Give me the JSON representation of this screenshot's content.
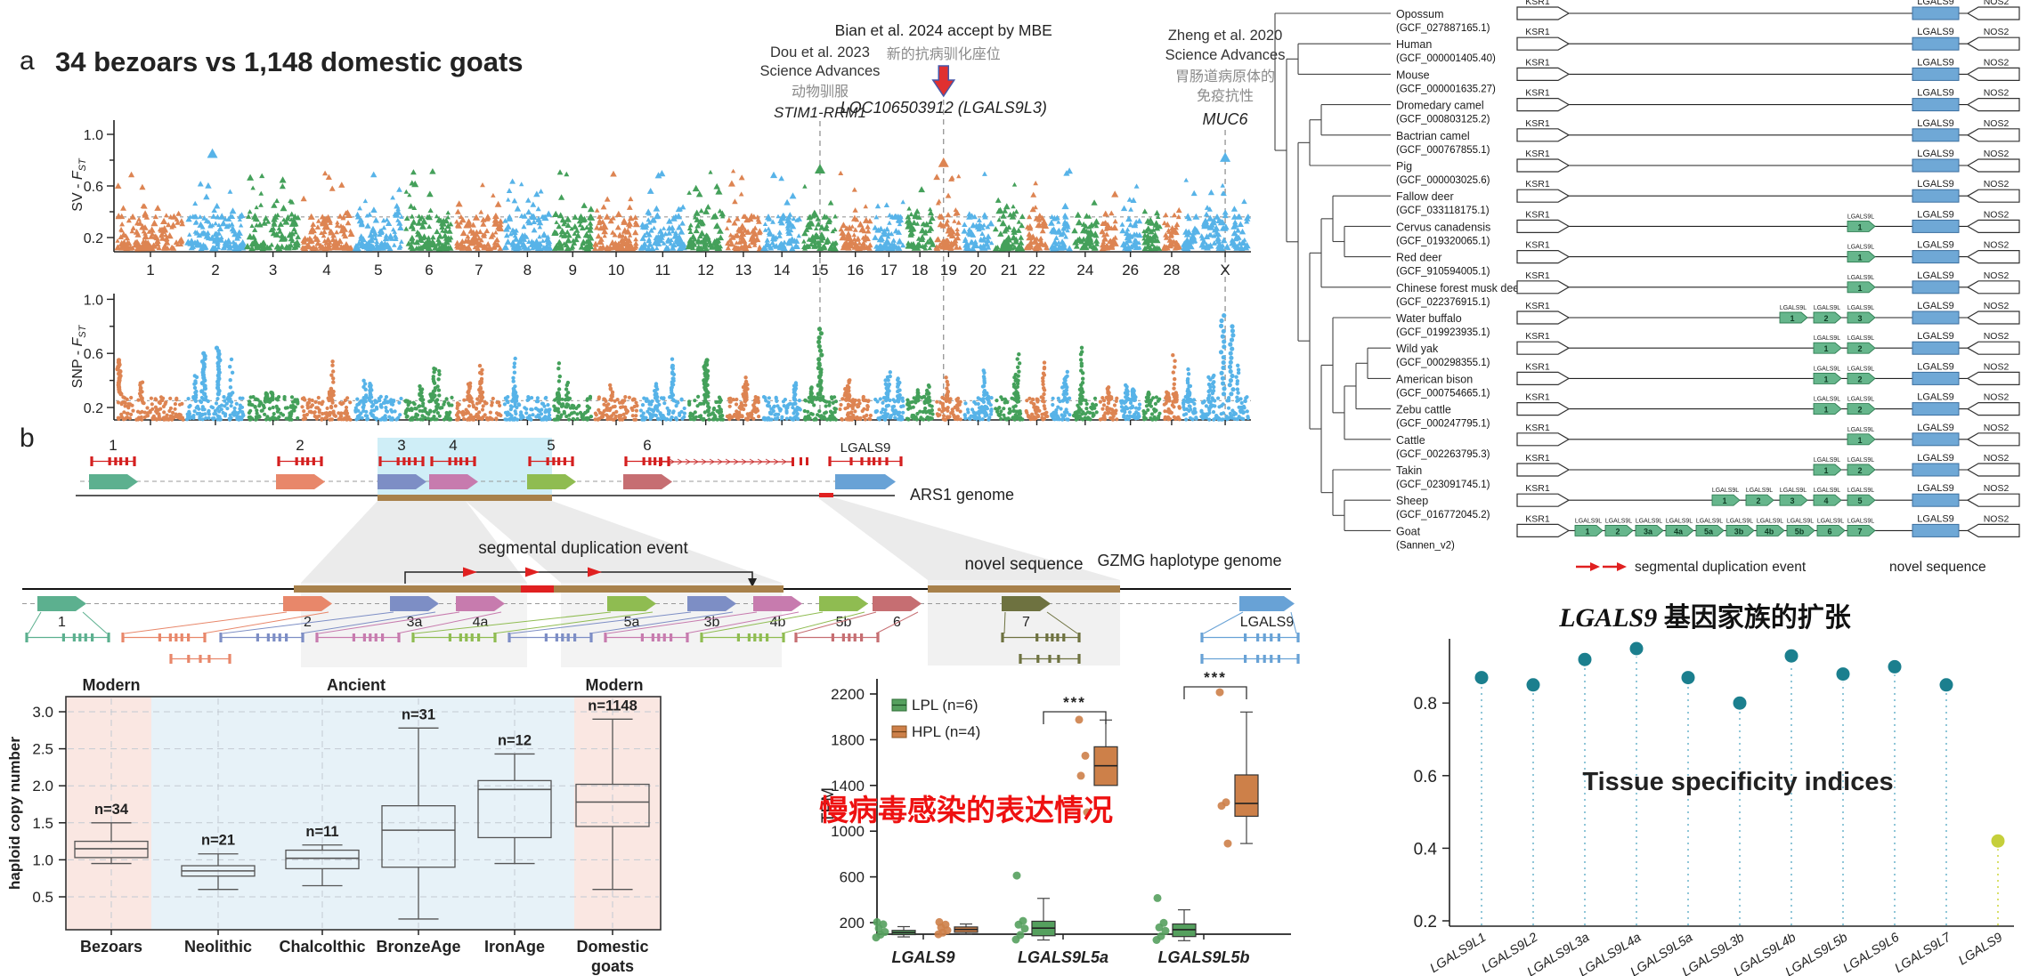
{
  "panel_a": {
    "label": "a",
    "title": "34 bezoars vs 1,148 domestic goats",
    "annotations": {
      "dou": {
        "ref": "Dou et al. 2023",
        "journal": "Science Advances",
        "note": "动物驯服",
        "genes": "STIM1-RRM1"
      },
      "bian": {
        "ref": "Bian et al. 2024 accept by MBE",
        "note": "新的抗病驯化座位",
        "genes": "LOC106503912  (LGALS9L3)"
      },
      "zheng": {
        "ref": "Zheng et al. 2020",
        "journal": "Science Advances",
        "note1": "胃肠道病原体的",
        "note2": "免疫抗性",
        "genes": "MUC6"
      }
    }
  },
  "chart_data": [
    {
      "id": "sv_fst",
      "type": "scatter",
      "ylabel_prefix": "SV - ",
      "ylabel_stat": "F",
      "ylabel_sub": "ST",
      "yticks": [
        "1.0",
        "0.6",
        "0.2"
      ],
      "ylim": [
        0.1,
        1.0
      ],
      "threshold": 0.36,
      "marker": "triangle",
      "chromosomes": [
        "1",
        "2",
        "3",
        "4",
        "5",
        "6",
        "7",
        "8",
        "9",
        "10",
        "11",
        "12",
        "13",
        "14",
        "15",
        "16",
        "17",
        "18",
        "19",
        "20",
        "21",
        "22",
        "",
        "24",
        "",
        "26",
        "",
        "28",
        "",
        "X"
      ],
      "point_colors": [
        "#dd8452",
        "#57b3e8",
        "#44a05a"
      ],
      "peaks": [
        {
          "chrom": "2",
          "frac": 0.45,
          "fst": 0.85
        },
        {
          "chrom": "15",
          "frac": 0.5,
          "fst": 0.73,
          "gene": "STIM1-RRM1"
        },
        {
          "chrom": "19",
          "frac": 0.32,
          "fst": 0.78,
          "gene": "LOC106503912 (LGALS9L3)"
        },
        {
          "chrom": "X",
          "frac": 0.5,
          "fst": 0.82,
          "gene": "MUC6"
        }
      ]
    },
    {
      "id": "snp_fst",
      "type": "scatter",
      "ylabel_prefix": "SNP - ",
      "ylabel_stat": "F",
      "ylabel_sub": "ST",
      "yticks": [
        "1.0",
        "0.6",
        "0.2"
      ],
      "ylim": [
        0.1,
        1.0
      ],
      "threshold": 0.25,
      "marker": "circle",
      "peaks": [
        {
          "chrom": "1",
          "frac": 0.05,
          "fst": 0.55
        },
        {
          "chrom": "2",
          "frac": 0.3,
          "fst": 0.6
        },
        {
          "chrom": "2",
          "frac": 0.55,
          "fst": 0.64
        },
        {
          "chrom": "12",
          "frac": 0.5,
          "fst": 0.55
        },
        {
          "chrom": "15",
          "frac": 0.5,
          "fst": 0.78,
          "gene": "STIM1-RRM1"
        },
        {
          "chrom": "X",
          "frac": 0.45,
          "fst": 0.88,
          "gene": "MUC6"
        },
        {
          "chrom": "X",
          "frac": 0.62,
          "fst": 0.8
        }
      ]
    },
    {
      "id": "haploid_copy_number",
      "type": "box",
      "ylabel": "haploid copy number",
      "yticks": [
        "0.5",
        "1.0",
        "1.5",
        "2.0",
        "2.5",
        "3.0"
      ],
      "ylim": [
        0.1,
        3.2
      ],
      "era_bands": [
        {
          "label": "Modern",
          "color": "#fae7e2"
        },
        {
          "label": "Ancient",
          "color": "#e7f2f8"
        },
        {
          "label": "Modern",
          "color": "#fae7e2"
        }
      ],
      "boxes": [
        {
          "label": "Bezoars",
          "label2": [
            "Bezoars"
          ],
          "n": "n=34",
          "lo": 0.95,
          "q1": 1.03,
          "med": 1.15,
          "q3": 1.25,
          "hi": 1.5
        },
        {
          "label": "Neolithic",
          "label2": [
            "Neolithic"
          ],
          "n": "n=21",
          "lo": 0.6,
          "q1": 0.78,
          "med": 0.85,
          "q3": 0.92,
          "hi": 1.08
        },
        {
          "label": "Chalcolthic",
          "label2": [
            "Chalcolthic"
          ],
          "n": "n=11",
          "lo": 0.65,
          "q1": 0.88,
          "med": 1.02,
          "q3": 1.13,
          "hi": 1.2
        },
        {
          "label": "BronzeAge",
          "label2": [
            "BronzeAge"
          ],
          "n": "n=31",
          "lo": 0.2,
          "q1": 0.9,
          "med": 1.4,
          "q3": 1.73,
          "hi": 2.78
        },
        {
          "label": "IronAge",
          "label2": [
            "IronAge"
          ],
          "n": "n=12",
          "lo": 0.95,
          "q1": 1.3,
          "med": 1.95,
          "q3": 2.07,
          "hi": 2.43
        },
        {
          "label": "Domestic goats",
          "label2": [
            "Domestic",
            "goats"
          ],
          "n": "n=1148",
          "lo": 0.6,
          "q1": 1.45,
          "med": 1.78,
          "q3": 2.02,
          "hi": 2.9
        }
      ]
    },
    {
      "id": "tpm_expression",
      "type": "box",
      "ylabel": "TPM",
      "yticks": [
        "200",
        "600",
        "1000",
        "1400",
        "1800",
        "2200"
      ],
      "ylim": [
        0,
        2350
      ],
      "legend": [
        {
          "label": "LPL (n=6)",
          "color": "#55a05e"
        },
        {
          "label": "HPL (n=4)",
          "color": "#cd8049"
        }
      ],
      "note": "慢病毒感染的表达情况",
      "note_color": "#ee1111",
      "groups": [
        {
          "gene": "LGALS9",
          "sig": null,
          "lpl": {
            "lo": 75,
            "q1": 95,
            "med": 112,
            "q3": 132,
            "hi": 165,
            "dots": [
              205,
              185,
              150,
              118,
              95,
              70
            ]
          },
          "hpl": {
            "lo": 98,
            "q1": 115,
            "med": 140,
            "q3": 162,
            "hi": 188,
            "dots": [
              205,
              182,
              158,
              132,
              112,
              98
            ]
          }
        },
        {
          "gene": "LGALS9L5a",
          "sig": "***",
          "lpl": {
            "lo": 48,
            "q1": 85,
            "med": 152,
            "q3": 212,
            "hi": 412,
            "dots": [
              612,
              215,
              182,
              148,
              92,
              52
            ]
          },
          "hpl": {
            "lo": 1400,
            "q1": 1400,
            "med": 1572,
            "q3": 1738,
            "hi": 1972,
            "dots": [
              1975,
              1660,
              1485,
              1165
            ]
          }
        },
        {
          "gene": "LGALS9L5b",
          "sig": "***",
          "lpl": {
            "lo": 42,
            "q1": 78,
            "med": 138,
            "q3": 188,
            "hi": 312,
            "dots": [
              415,
              198,
              158,
              128,
              82,
              48
            ]
          },
          "hpl": {
            "lo": 892,
            "q1": 1130,
            "med": 1242,
            "q3": 1492,
            "hi": 2042,
            "dots": [
              2215,
              1252,
              1222,
              892
            ]
          }
        }
      ]
    },
    {
      "id": "tissue_specificity",
      "type": "lollipop",
      "title": "Tissue specificity indices",
      "yticks": [
        "0.2",
        "0.4",
        "0.6",
        "0.8"
      ],
      "ylim": [
        0.2,
        1.0
      ],
      "categories": [
        "LGALS9L1",
        "LGALS9L2",
        "LGALS9L3a",
        "LGALS9L4a",
        "LGALS9L5a",
        "LGALS9L3b",
        "LGALS9L4b",
        "LGALS9L5b",
        "LGALS9L6",
        "LGALS9L7",
        "LGALS9"
      ],
      "values": [
        0.87,
        0.85,
        0.92,
        0.95,
        0.87,
        0.8,
        0.93,
        0.88,
        0.9,
        0.85,
        0.42
      ],
      "dot_color": "#1b7f8e",
      "last_dot_color": "#c5cf3a",
      "stem_color": "#8fc6d8",
      "last_stem_color": "#d9e06a"
    }
  ],
  "panel_b": {
    "label": "b",
    "ars1_label": "ARS1 genome",
    "gzmg_label": "GZMG haplotype genome",
    "dup_label": "segmental duplication event",
    "novel_label": "novel sequence",
    "ars1_genes": [
      {
        "id": "1",
        "color": "#5cb08f"
      },
      {
        "id": "2",
        "color": "#e8876a"
      },
      {
        "id": "3",
        "color": "#7d8ec5"
      },
      {
        "id": "4",
        "color": "#c77bae"
      },
      {
        "id": "5",
        "color": "#8fbc51"
      },
      {
        "id": "6",
        "color": "#c66e72"
      },
      {
        "id": "LGALS9",
        "color": "#68a2d6"
      }
    ],
    "gzmg_genes": [
      {
        "id": "1",
        "color": "#5cb08f"
      },
      {
        "id": "2",
        "color": "#e8876a"
      },
      {
        "id": "3a",
        "color": "#7d8ec5"
      },
      {
        "id": "4a",
        "color": "#c77bae"
      },
      {
        "id": "5a",
        "color": "#8fbc51"
      },
      {
        "id": "3b",
        "color": "#7d8ec5"
      },
      {
        "id": "4b",
        "color": "#c77bae"
      },
      {
        "id": "5b",
        "color": "#8fbc51"
      },
      {
        "id": "6",
        "color": "#c66e72"
      },
      {
        "id": "7",
        "color": "#6e7240"
      },
      {
        "id": "LGALS9",
        "color": "#68a2d6"
      }
    ]
  },
  "tree": {
    "flank_left": "KSR1",
    "gene": "LGALS9",
    "dup_gene": "LGALS9L",
    "flank_right": "NOS2",
    "footer_dup": "segmental duplication event",
    "footer_novel": "novel sequence",
    "title_gene": "LGALS9",
    "title_rest": " 基因家族的扩张",
    "species": [
      {
        "name": "Opossum",
        "acc": "(GCF_027887165.1)",
        "copies": []
      },
      {
        "name": "Human",
        "acc": "(GCF_000001405.40)",
        "copies": []
      },
      {
        "name": "Mouse",
        "acc": "(GCF_000001635.27)",
        "copies": []
      },
      {
        "name": "Dromedary camel",
        "acc": "(GCF_000803125.2)",
        "copies": []
      },
      {
        "name": "Bactrian camel",
        "acc": "(GCF_000767855.1)",
        "copies": []
      },
      {
        "name": "Pig",
        "acc": "(GCF_000003025.6)",
        "copies": []
      },
      {
        "name": "Fallow deer",
        "acc": "(GCF_033118175.1)",
        "copies": []
      },
      {
        "name": "Cervus canadensis",
        "acc": "(GCF_019320065.1)",
        "copies": [
          "1"
        ]
      },
      {
        "name": "Red deer",
        "acc": "(GCF_910594005.1)",
        "copies": [
          "1"
        ]
      },
      {
        "name": "Chinese forest musk deer",
        "acc": "(GCF_022376915.1)",
        "copies": [
          "1"
        ]
      },
      {
        "name": "Water buffalo",
        "acc": "(GCF_019923935.1)",
        "copies": [
          "1",
          "2",
          "3"
        ]
      },
      {
        "name": "Wild yak",
        "acc": "(GCF_000298355.1)",
        "copies": [
          "1",
          "2"
        ]
      },
      {
        "name": "American bison",
        "acc": "(GCF_000754665.1)",
        "copies": [
          "1",
          "2"
        ]
      },
      {
        "name": "Zebu cattle",
        "acc": "(GCF_000247795.1)",
        "copies": [
          "1",
          "2"
        ]
      },
      {
        "name": "Cattle",
        "acc": "(GCF_002263795.3)",
        "copies": [
          "1"
        ]
      },
      {
        "name": "Takin",
        "acc": "(GCF_023091745.1)",
        "copies": [
          "1",
          "2"
        ]
      },
      {
        "name": "Sheep",
        "acc": "(GCF_016772045.2)",
        "copies": [
          "1",
          "2",
          "3",
          "4",
          "5"
        ]
      },
      {
        "name": "Goat",
        "acc": "(Sannen_v2)",
        "copies": [
          "1",
          "2",
          "3a",
          "4a",
          "5a",
          "3b",
          "4b",
          "5b",
          "6",
          "7"
        ]
      }
    ]
  }
}
